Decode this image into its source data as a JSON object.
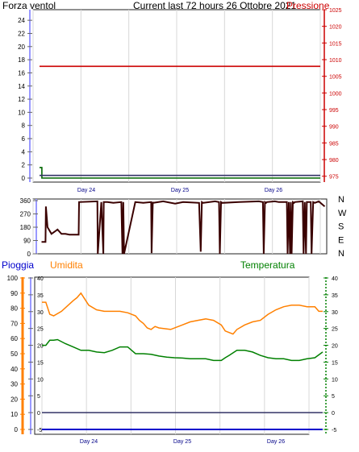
{
  "header": {
    "left_title": "Forza ventol",
    "center_title": "Current last 72 hours 26 Ottobre 2021",
    "right_title": "Pressione"
  },
  "colors": {
    "pressure": "#cc0000",
    "wind_green": "#006600",
    "wind_blue": "#333366",
    "direction": "#3a0000",
    "rain": "#0000cc",
    "humidity": "#ff8000",
    "temperature": "#008000",
    "grid": "#d8d8d8"
  },
  "days": [
    "Day 24",
    "Day 25",
    "Day 26"
  ],
  "chart_data": [
    {
      "type": "line",
      "title": "Current last 72 hours 26 Ottobre 2021",
      "x_unit": "hours",
      "xlim": [
        0,
        72
      ],
      "left_axis": {
        "label": "Forza ventol",
        "ylim": [
          0,
          25
        ],
        "ticks": [
          0,
          2,
          4,
          6,
          8,
          10,
          12,
          14,
          16,
          18,
          20,
          22,
          24
        ]
      },
      "right_axis": {
        "label": "Pressione",
        "ylim": [
          973,
          1025
        ],
        "ticks": [
          975,
          980,
          985,
          990,
          995,
          1000,
          1005,
          1010,
          1015,
          1020,
          1025
        ]
      },
      "series": [
        {
          "name": "Pressione",
          "axis": "right",
          "color": "#cc0000",
          "x": [
            0,
            72
          ],
          "y": [
            1008,
            1008
          ]
        },
        {
          "axis": "left",
          "color": "#006600",
          "x": [
            0,
            0.6,
            0.6,
            72
          ],
          "y": [
            1.6,
            1.6,
            0,
            0
          ]
        },
        {
          "axis": "left",
          "color": "#333366",
          "x": [
            0,
            72
          ],
          "y": [
            0.4,
            0.4
          ]
        }
      ]
    },
    {
      "type": "line",
      "x_unit": "hours",
      "xlim": [
        0,
        72
      ],
      "left_axis": {
        "ylim": [
          0,
          360
        ],
        "ticks": [
          0,
          90,
          180,
          270,
          360
        ]
      },
      "right_labels": [
        "N",
        "W",
        "S",
        "E",
        "N"
      ],
      "series": [
        {
          "color": "#3a0000",
          "x": [
            0.5,
            1.5,
            1.6,
            2,
            3,
            3.8,
            4.5,
            5.5,
            6.5,
            7.5,
            8.5,
            9.8,
            9.9,
            14.5,
            14.6,
            15.5,
            16,
            16.1,
            17,
            18.5,
            20.5,
            20.8,
            21,
            21.2,
            24,
            26,
            28,
            28.1,
            28.4,
            28.5,
            31,
            34,
            36,
            40,
            40.4,
            40.7,
            41,
            44,
            45,
            45.2,
            45.5,
            45.8,
            50,
            55,
            56,
            56.2,
            56.5,
            56.8,
            57,
            59,
            60,
            62,
            62.2,
            62.5,
            62.8,
            63,
            63.2,
            63.5,
            63.8,
            64,
            66,
            66.2,
            66.5,
            66.8,
            67,
            68,
            68.2,
            68.6,
            69,
            70,
            71.5
          ],
          "y": [
            80,
            80,
            320,
            180,
            135,
            150,
            165,
            135,
            135,
            130,
            130,
            130,
            350,
            355,
            0,
            350,
            0,
            350,
            350,
            345,
            350,
            0,
            350,
            0,
            350,
            345,
            350,
            5,
            350,
            345,
            355,
            340,
            350,
            345,
            15,
            350,
            345,
            355,
            350,
            0,
            350,
            345,
            350,
            355,
            350,
            0,
            350,
            345,
            350,
            355,
            350,
            350,
            0,
            350,
            0,
            350,
            0,
            350,
            345,
            350,
            355,
            0,
            350,
            0,
            350,
            350,
            0,
            350,
            345,
            355,
            320
          ]
        }
      ]
    },
    {
      "type": "line",
      "x_unit": "hours",
      "xlim": [
        0,
        72
      ],
      "left_axis": {
        "label": "Pioggia",
        "ylim": [
          -5,
          40
        ],
        "ticks": [
          -5,
          0,
          5,
          10,
          15,
          20,
          25,
          30,
          35,
          40
        ]
      },
      "outer_axis": {
        "label": "Umidita",
        "ylim": [
          0,
          100
        ],
        "ticks": [
          0,
          10,
          20,
          30,
          40,
          50,
          60,
          70,
          80,
          90,
          100
        ]
      },
      "right_axis": {
        "label": "Temperatura",
        "ylim": [
          -5,
          40
        ],
        "ticks": [
          -5,
          0,
          5,
          10,
          15,
          20,
          25,
          30,
          35,
          40
        ]
      },
      "series": [
        {
          "name": "Umidita",
          "axis": "outer",
          "color": "#ff8000",
          "x": [
            0,
            1,
            2,
            3,
            5,
            8,
            9,
            10,
            12,
            14,
            16,
            18,
            20,
            22,
            24,
            25,
            26,
            27,
            28,
            29,
            30,
            33,
            36,
            38,
            40,
            42,
            44,
            46,
            47,
            48,
            49,
            50,
            52,
            54,
            56,
            58,
            60,
            62,
            64,
            66,
            68,
            70,
            71,
            72
          ],
          "y": [
            84,
            84,
            76,
            75,
            78,
            85,
            87,
            90,
            82,
            79,
            78,
            78,
            78,
            77,
            75,
            72,
            70,
            67,
            66,
            68,
            67,
            66,
            69,
            71,
            72,
            73,
            72,
            69,
            65,
            64,
            63,
            66,
            69,
            71,
            72,
            76,
            79,
            81,
            82,
            82,
            81,
            81,
            78,
            78
          ]
        },
        {
          "name": "Temperatura",
          "axis": "right",
          "color": "#008000",
          "x": [
            0,
            1,
            2,
            3,
            4,
            6,
            8,
            10,
            12,
            14,
            16,
            18,
            20,
            22,
            24,
            26,
            28,
            30,
            32,
            34,
            36,
            38,
            40,
            42,
            44,
            46,
            47,
            48,
            50,
            52,
            54,
            56,
            58,
            60,
            62,
            64,
            66,
            68,
            70,
            72
          ],
          "y": [
            20,
            20,
            21.5,
            21.5,
            21.7,
            20.5,
            19.5,
            18.5,
            18.5,
            18,
            17.8,
            18.5,
            19.5,
            19.5,
            17.5,
            17.5,
            17.3,
            16.8,
            16.5,
            16.3,
            16.2,
            16,
            16,
            16,
            15.5,
            15.5,
            16.3,
            17,
            18.5,
            18.5,
            18,
            17,
            16.3,
            16,
            16,
            15.5,
            15.5,
            16,
            16.3,
            18
          ]
        },
        {
          "name": "Pioggia",
          "axis": "left",
          "color": "#0000cc",
          "x": [
            0,
            72
          ],
          "y": [
            -5,
            -5
          ]
        },
        {
          "axis": "left",
          "color": "#333366",
          "x": [
            0,
            72
          ],
          "y": [
            0,
            0
          ]
        }
      ]
    }
  ]
}
